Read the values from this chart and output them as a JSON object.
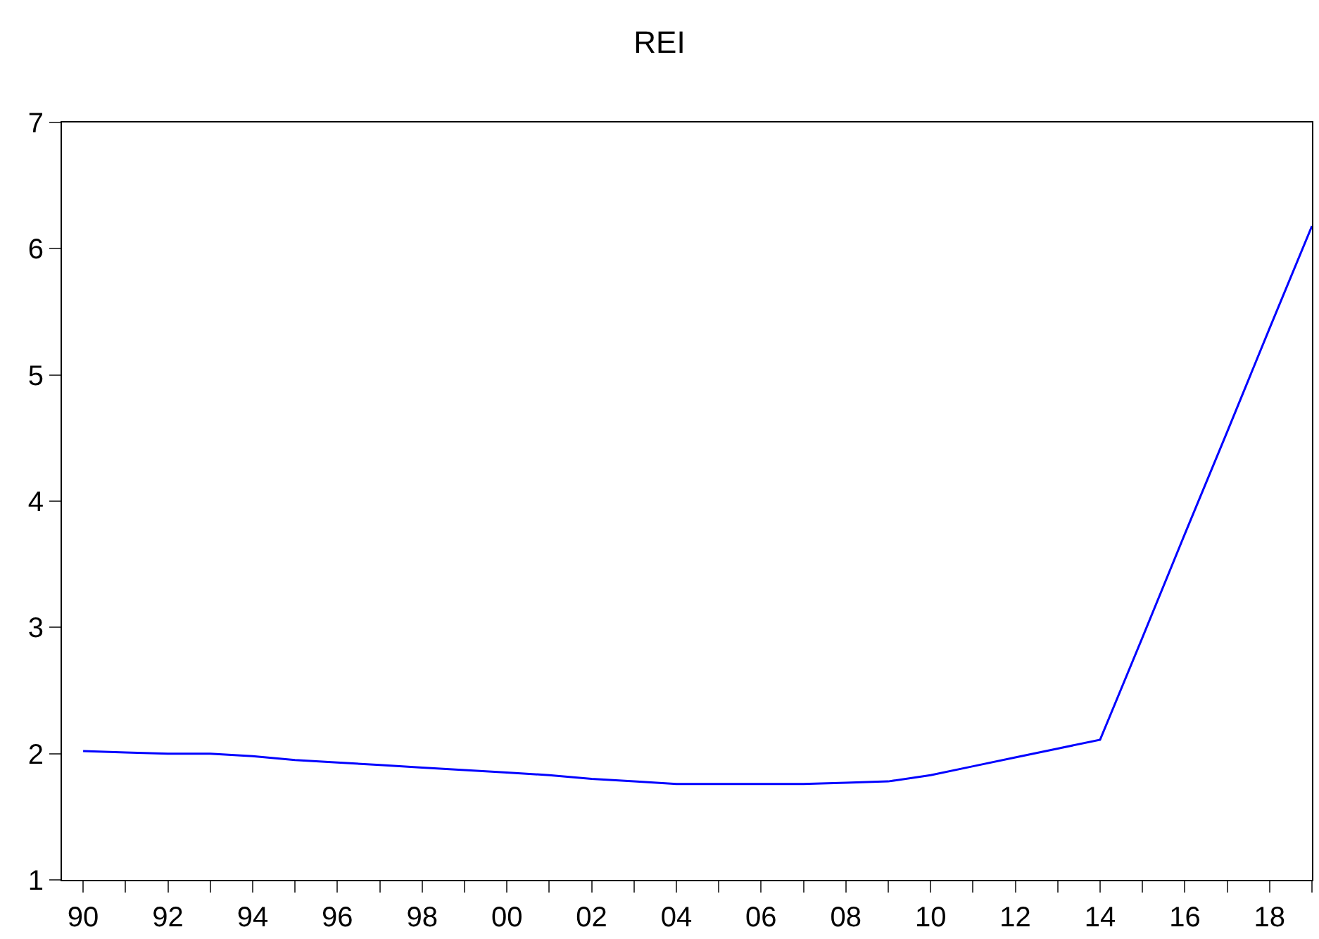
{
  "chart_data": {
    "type": "line",
    "title": "REI",
    "x": [
      1990,
      1991,
      1992,
      1993,
      1994,
      1995,
      1996,
      1997,
      1998,
      1999,
      2000,
      2001,
      2002,
      2003,
      2004,
      2005,
      2006,
      2007,
      2008,
      2009,
      2010,
      2011,
      2012,
      2013,
      2014,
      2015,
      2016,
      2017,
      2018,
      2019
    ],
    "series": [
      {
        "color": "#0000ff",
        "values": [
          2.02,
          2.01,
          2.0,
          2.0,
          1.98,
          1.95,
          1.93,
          1.91,
          1.89,
          1.87,
          1.85,
          1.83,
          1.8,
          1.78,
          1.76,
          1.76,
          1.76,
          1.76,
          1.77,
          1.78,
          1.83,
          1.9,
          1.97,
          2.04,
          2.11,
          2.92,
          3.74,
          4.55,
          5.37,
          6.18
        ]
      }
    ],
    "xlim": [
      1989.5,
      2019
    ],
    "xticks": [
      {
        "value": 1990,
        "label": "90"
      },
      {
        "value": 1991,
        "label": null
      },
      {
        "value": 1992,
        "label": "92"
      },
      {
        "value": 1993,
        "label": null
      },
      {
        "value": 1994,
        "label": "94"
      },
      {
        "value": 1995,
        "label": null
      },
      {
        "value": 1996,
        "label": "96"
      },
      {
        "value": 1997,
        "label": null
      },
      {
        "value": 1998,
        "label": "98"
      },
      {
        "value": 1999,
        "label": null
      },
      {
        "value": 2000,
        "label": "00"
      },
      {
        "value": 2001,
        "label": null
      },
      {
        "value": 2002,
        "label": "02"
      },
      {
        "value": 2003,
        "label": null
      },
      {
        "value": 2004,
        "label": "04"
      },
      {
        "value": 2005,
        "label": null
      },
      {
        "value": 2006,
        "label": "06"
      },
      {
        "value": 2007,
        "label": null
      },
      {
        "value": 2008,
        "label": "08"
      },
      {
        "value": 2009,
        "label": null
      },
      {
        "value": 2010,
        "label": "10"
      },
      {
        "value": 2011,
        "label": null
      },
      {
        "value": 2012,
        "label": "12"
      },
      {
        "value": 2013,
        "label": null
      },
      {
        "value": 2014,
        "label": "14"
      },
      {
        "value": 2015,
        "label": null
      },
      {
        "value": 2016,
        "label": "16"
      },
      {
        "value": 2017,
        "label": null
      },
      {
        "value": 2018,
        "label": "18"
      },
      {
        "value": 2019,
        "label": null
      }
    ],
    "ylim": [
      1,
      7
    ],
    "yticks": [
      1,
      2,
      3,
      4,
      5,
      6,
      7
    ],
    "grid": false,
    "marker": "none",
    "line_style": "solid"
  }
}
